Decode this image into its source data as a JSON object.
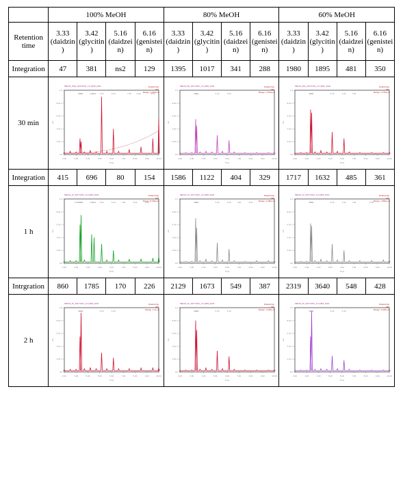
{
  "conditions": [
    "100% MeOH",
    "80% MeOH",
    "60% MeOH"
  ],
  "row_header_retention": "Retention time",
  "retention_labels": [
    "3.33 (daidzin)",
    "3.42 (glycitin)",
    "5.16 (daidzein)",
    "6.16 (genistein)",
    "3.33 (daidzin)",
    "3.42 (glycitin)",
    "5.16 (daidzein)",
    "6.16 (genistein)",
    "3.33 (daidzin)",
    "3.42 (glycitin)",
    "5.16 (daidzein)",
    "6.16 (genistein)"
  ],
  "integration_rows": [
    {
      "label": "Integration",
      "values": [
        "47",
        "381",
        "ns2",
        "129",
        "1395",
        "1017",
        "341",
        "288",
        "1980",
        "1895",
        "481",
        "350"
      ]
    },
    {
      "label": "Integration",
      "values": [
        "415",
        "696",
        "80",
        "154",
        "1586",
        "1122",
        "404",
        "329",
        "1717",
        "1632",
        "485",
        "361"
      ]
    },
    {
      "label": "Intrgration",
      "values": [
        "860",
        "1785",
        "170",
        "226",
        "2129",
        "1673",
        "549",
        "387",
        "2319",
        "3640",
        "548",
        "428"
      ]
    }
  ],
  "time_labels": [
    "30 min",
    "1 h",
    "2 h"
  ],
  "chromatograms": [
    [
      {
        "title": "MEON_100a_20171031_LC-QMS_DAD",
        "stroke": "#d01030",
        "sideText": "DiodeArray\n265\nRange: 1.103e+1",
        "x": [
          2.0,
          2.5,
          3.0,
          3.33,
          3.42,
          3.7,
          4.2,
          4.7,
          5.16,
          5.6,
          6.16,
          6.6,
          7.5,
          8.5,
          9.5,
          10.0
        ],
        "y": [
          0.03,
          0.05,
          0.04,
          0.25,
          0.2,
          0.04,
          0.06,
          0.04,
          0.9,
          0.05,
          0.4,
          0.05,
          0.08,
          0.12,
          0.25,
          0.55
        ],
        "baseline": true,
        "marks": [
          3.33,
          3.42,
          4.32,
          4.52,
          5.16,
          6.16,
          7.5,
          8.3,
          9.5
        ]
      },
      {
        "title": "MEON_80_20171031_LC-QMS_DAD",
        "stroke": "#c040c0",
        "sideText": "DiodeArray\n265\nRange: 1.103e+1",
        "x": [
          2.0,
          2.5,
          3.0,
          3.33,
          3.42,
          3.7,
          4.2,
          4.7,
          5.16,
          5.6,
          6.16,
          6.6,
          7.5,
          8.5,
          9.5,
          10.0
        ],
        "y": [
          0.02,
          0.03,
          0.03,
          0.55,
          0.45,
          0.04,
          0.05,
          0.04,
          0.3,
          0.05,
          0.22,
          0.04,
          0.03,
          0.03,
          0.03,
          0.03
        ],
        "baseline": false,
        "marks": [
          3.33,
          3.42,
          5.16,
          6.16
        ]
      },
      {
        "title": "MEON_60a_20171031_LC-QMS_DAD",
        "stroke": "#d01030",
        "sideText": "DiodeArray\n265\nRange: 1.734e+1",
        "x": [
          2.0,
          2.5,
          3.0,
          3.33,
          3.42,
          3.7,
          4.2,
          4.7,
          5.16,
          5.6,
          6.16,
          6.6,
          7.5,
          8.5,
          9.5,
          10.0
        ],
        "y": [
          0.02,
          0.03,
          0.03,
          0.7,
          0.65,
          0.04,
          0.06,
          0.04,
          0.35,
          0.05,
          0.25,
          0.04,
          0.03,
          0.03,
          0.03,
          0.03
        ],
        "baseline": false,
        "marks": [
          3.33,
          3.42,
          5.16,
          6.16,
          7.0
        ]
      }
    ],
    [
      {
        "title": "MEON_1h_20171031_LC-QMS_DAD",
        "stroke": "#10a020",
        "sideText": "DiodeArray\n265\nRange: 8.339e+0",
        "x": [
          2.0,
          2.5,
          3.0,
          3.33,
          3.42,
          3.7,
          4.32,
          4.52,
          5.16,
          5.6,
          6.16,
          6.6,
          7.5,
          8.5,
          9.5,
          10.0
        ],
        "y": [
          0.03,
          0.04,
          0.04,
          0.6,
          0.75,
          0.05,
          0.45,
          0.4,
          0.3,
          0.05,
          0.2,
          0.05,
          0.06,
          0.07,
          0.08,
          0.1
        ],
        "baseline": false,
        "marks": [
          3.03,
          3.33,
          3.42,
          4.32,
          4.52,
          5.16,
          6.16,
          7.0,
          8.0,
          9.0
        ]
      },
      {
        "title": "MEON_1h_20171031_LC-QMS_DAD",
        "stroke": "#888888",
        "sideText": "DiodeArray\n265\nRange: 1.189e+1",
        "x": [
          2.0,
          2.5,
          3.0,
          3.33,
          3.42,
          3.7,
          4.2,
          4.7,
          5.16,
          5.6,
          6.16,
          6.6,
          7.5,
          8.5,
          9.5,
          10.0
        ],
        "y": [
          0.02,
          0.03,
          0.03,
          0.7,
          0.55,
          0.04,
          0.06,
          0.04,
          0.32,
          0.05,
          0.22,
          0.04,
          0.03,
          0.04,
          0.04,
          0.04
        ],
        "baseline": false,
        "marks": [
          3.33,
          3.42,
          5.16,
          6.16,
          7.0,
          8.0
        ]
      },
      {
        "title": "MEON_1h_20171031_LC-QMS_DAD",
        "stroke": "#888888",
        "sideText": "DiodeArray\n265\nRange: 1.806e+1",
        "x": [
          2.0,
          2.5,
          3.0,
          3.33,
          3.42,
          3.7,
          4.2,
          4.7,
          5.16,
          5.6,
          6.16,
          6.6,
          7.5,
          8.5,
          9.5,
          10.0
        ],
        "y": [
          0.02,
          0.03,
          0.03,
          0.62,
          0.58,
          0.04,
          0.06,
          0.04,
          0.3,
          0.05,
          0.2,
          0.04,
          0.04,
          0.04,
          0.05,
          0.05
        ],
        "baseline": false,
        "marks": [
          3.33,
          3.42,
          5.16,
          6.16,
          7.0,
          8.5
        ]
      }
    ],
    [
      {
        "title": "MEON_2h_20171031_LC-QMS_DAD",
        "stroke": "#d01030",
        "sideText": "DiodeArray\n265\nRange: 1.1e+1",
        "x": [
          2.0,
          2.5,
          3.0,
          3.33,
          3.42,
          3.7,
          4.2,
          4.7,
          5.16,
          5.6,
          6.16,
          6.6,
          7.5,
          8.5,
          9.5,
          10.0
        ],
        "y": [
          0.03,
          0.04,
          0.04,
          0.55,
          0.92,
          0.05,
          0.07,
          0.05,
          0.3,
          0.05,
          0.22,
          0.05,
          0.05,
          0.06,
          0.06,
          0.06
        ],
        "baseline": false,
        "marks": [
          3.33,
          3.42,
          5.16,
          6.16
        ]
      },
      {
        "title": "MEON_2h_20171031_LC-QMS_DAD",
        "stroke": "#d01030",
        "sideText": "DiodeArray\n265\nRange: 1.189e+1",
        "x": [
          2.0,
          2.5,
          3.0,
          3.33,
          3.42,
          3.7,
          4.2,
          4.7,
          5.16,
          5.6,
          6.16,
          6.6,
          7.5,
          8.5,
          9.5,
          10.0
        ],
        "y": [
          0.02,
          0.03,
          0.03,
          0.8,
          0.65,
          0.04,
          0.06,
          0.04,
          0.33,
          0.05,
          0.24,
          0.04,
          0.03,
          0.03,
          0.03,
          0.03
        ],
        "baseline": false,
        "marks": [
          3.33,
          3.42,
          5.16,
          6.16
        ]
      },
      {
        "title": "MEON_2h_20171031_LC-QMS_DAD",
        "stroke": "#a040d0",
        "sideText": "DiodeArray\n265\nRange: 3.035e+1",
        "x": [
          2.0,
          2.5,
          3.0,
          3.33,
          3.42,
          3.7,
          4.2,
          4.7,
          5.16,
          5.6,
          6.16,
          6.6,
          7.5,
          8.5,
          9.5,
          10.0
        ],
        "y": [
          0.02,
          0.03,
          0.03,
          0.55,
          0.95,
          0.04,
          0.05,
          0.04,
          0.25,
          0.05,
          0.18,
          0.04,
          0.03,
          0.03,
          0.03,
          0.03
        ],
        "baseline": false,
        "marks": [
          3.33,
          3.42,
          5.16,
          6.16
        ]
      }
    ]
  ],
  "x_axis": {
    "min": 2.0,
    "max": 10.0,
    "ticks": [
      2,
      3,
      4,
      5,
      6,
      7,
      8,
      9,
      10
    ]
  },
  "y_axis": {
    "ticks": [
      "0.0",
      "2.0e-1",
      "4.0e-1",
      "6.0e-1",
      "8.0e-1",
      "1.0"
    ]
  },
  "svg": {
    "w": 164,
    "h": 120,
    "ml": 22,
    "mr": 4,
    "mt": 12,
    "mb": 14
  }
}
